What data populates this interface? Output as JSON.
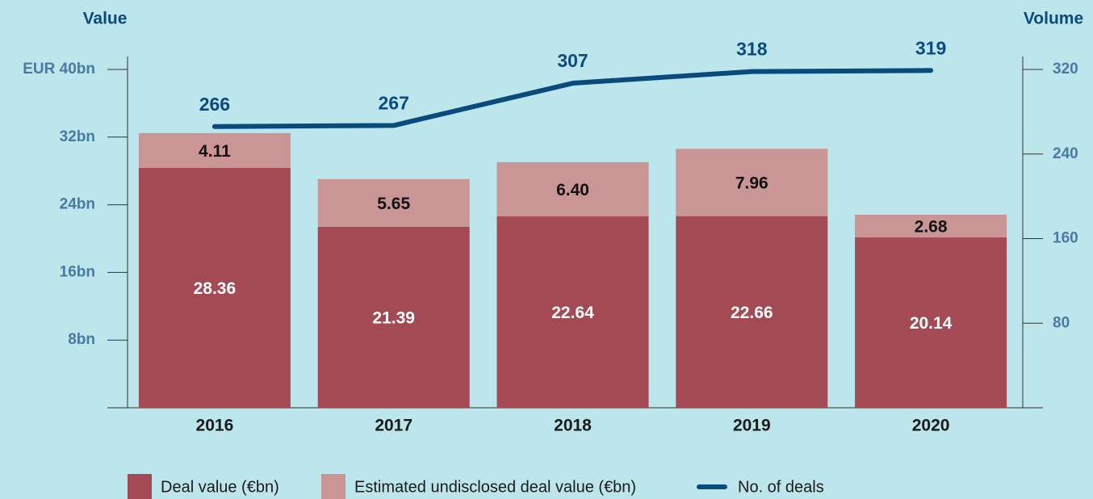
{
  "chart_data": {
    "type": "bar",
    "y_label": "Value",
    "y2_label": "Volume",
    "categories": [
      "2016",
      "2017",
      "2018",
      "2019",
      "2020"
    ],
    "series": [
      {
        "name": "Deal value (€bn)",
        "color": "#a34a55",
        "values": [
          28.36,
          21.39,
          22.64,
          22.66,
          20.14
        ],
        "value_labels": [
          "28.36",
          "21.39",
          "22.64",
          "22.66",
          "20.14"
        ]
      },
      {
        "name": "Estimated undisclosed deal value (€bn)",
        "color": "#c99595",
        "values": [
          4.11,
          5.65,
          6.4,
          7.96,
          2.68
        ],
        "value_labels": [
          "4.11",
          "5.65",
          "6.40",
          "7.96",
          "2.68"
        ]
      },
      {
        "name": "No. of deals",
        "color": "#0b4a7d",
        "type": "line",
        "axis": "y2",
        "values": [
          266,
          267,
          307,
          318,
          319
        ]
      }
    ],
    "ylim": [
      0,
      40
    ],
    "yticks": [
      {
        "value": 8,
        "label": "8bn"
      },
      {
        "value": 16,
        "label": "16bn"
      },
      {
        "value": 24,
        "label": "24bn"
      },
      {
        "value": 32,
        "label": "32bn"
      },
      {
        "value": 40,
        "label": "EUR 40bn"
      }
    ],
    "y2lim": [
      0,
      320
    ],
    "y2ticks": [
      80,
      160,
      240,
      320
    ]
  }
}
